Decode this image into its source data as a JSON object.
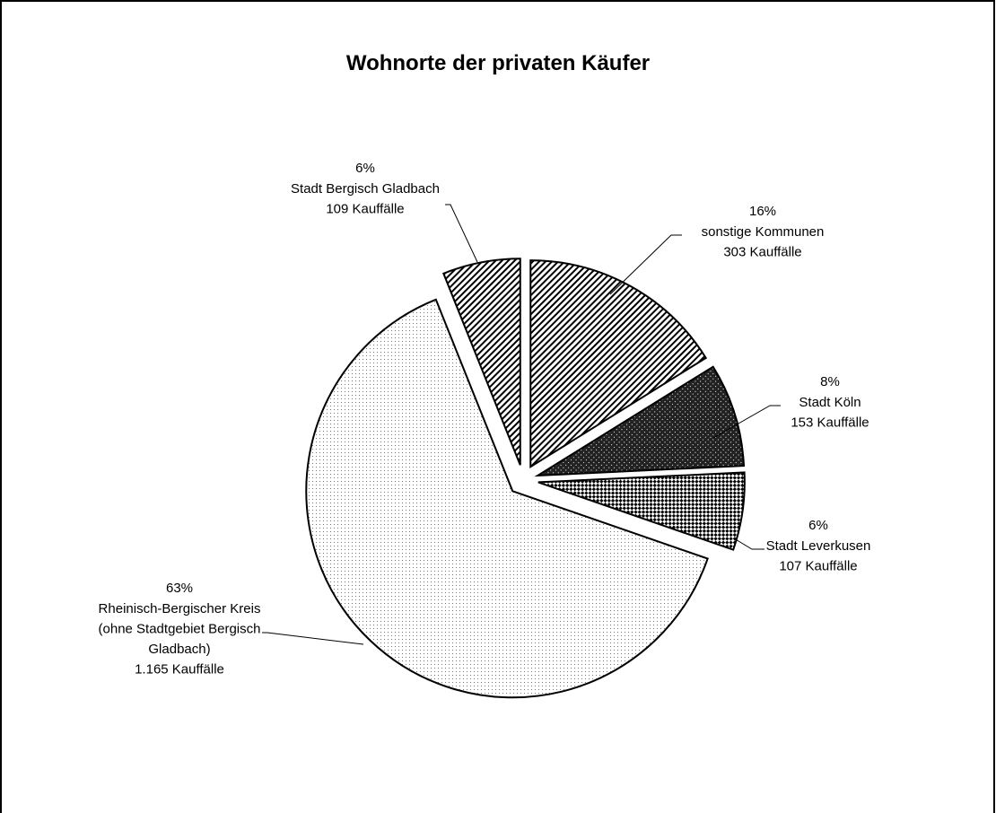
{
  "chart_data": {
    "type": "pie",
    "title": "Wohnorte der privaten Käufer",
    "categories": [
      "sonstige Kommunen",
      "Stadt Köln",
      "Stadt Leverkusen",
      "Rheinisch-Bergischer Kreis (ohne Stadtgebiet Bergisch Gladbach)",
      "Stadt Bergisch Gladbach"
    ],
    "values": [
      16,
      8,
      6,
      63,
      6
    ],
    "value_labels": [
      "16%",
      "8%",
      "6%",
      "63%",
      "6%"
    ],
    "count_labels": [
      "303 Kauffälle",
      "153 Kauffälle",
      "107 Kauffälle",
      "1.165 Kauffälle",
      "109 Kauffälle"
    ],
    "patterns": [
      "diagonal",
      "dark",
      "checker",
      "dots",
      "diagonal"
    ]
  }
}
